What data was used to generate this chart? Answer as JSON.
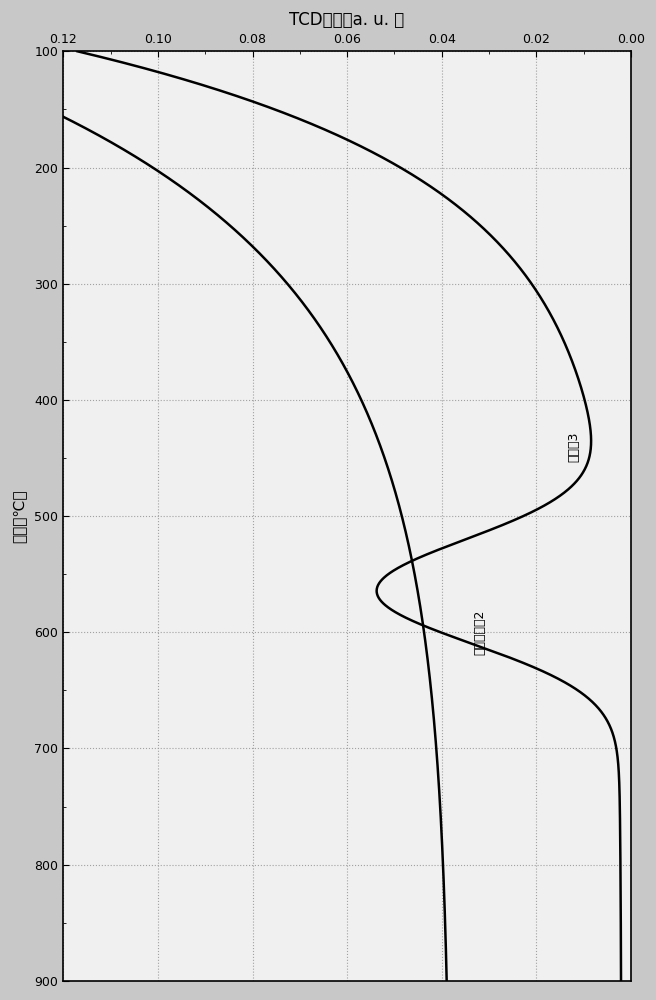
{
  "title": "TCD信号（a. u. ）",
  "ylabel": "温度（℃）",
  "xlim": [
    0.0,
    0.12
  ],
  "ylim": [
    100,
    900
  ],
  "xticks": [
    0.0,
    0.02,
    0.04,
    0.06,
    0.08,
    0.1,
    0.12
  ],
  "yticks": [
    100,
    200,
    300,
    400,
    500,
    600,
    700,
    800,
    900
  ],
  "label_example3": "实施例3",
  "label_comp2": "对比参照例2",
  "bg_color": "#f0f0f0",
  "line_color": "#000000",
  "grid_color": "#999999"
}
